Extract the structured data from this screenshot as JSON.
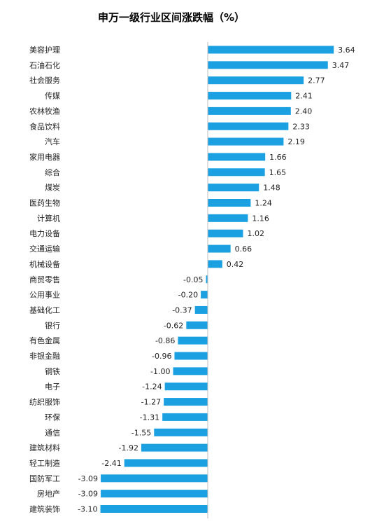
{
  "chart_data": {
    "type": "bar",
    "orientation": "horizontal",
    "title": "申万一级行业区间涨跌幅（%）",
    "categories": [
      "美容护理",
      "石油石化",
      "社会服务",
      "传媒",
      "农林牧渔",
      "食品饮料",
      "汽车",
      "家用电器",
      "综合",
      "煤炭",
      "医药生物",
      "计算机",
      "电力设备",
      "交通运输",
      "机械设备",
      "商贸零售",
      "公用事业",
      "基础化工",
      "银行",
      "有色金属",
      "非银金融",
      "钢铁",
      "电子",
      "纺织服饰",
      "环保",
      "通信",
      "建筑材料",
      "轻工制造",
      "国防军工",
      "房地产",
      "建筑装饰"
    ],
    "values": [
      3.64,
      3.47,
      2.77,
      2.41,
      2.4,
      2.33,
      2.19,
      1.66,
      1.65,
      1.48,
      1.24,
      1.16,
      1.02,
      0.66,
      0.42,
      -0.05,
      -0.2,
      -0.37,
      -0.62,
      -0.86,
      -0.96,
      -1.0,
      -1.24,
      -1.27,
      -1.31,
      -1.55,
      -1.92,
      -2.41,
      -3.09,
      -3.09,
      -3.1
    ],
    "value_labels": [
      "3.64",
      "3.47",
      "2.77",
      "2.41",
      "2.40",
      "2.33",
      "2.19",
      "1.66",
      "1.65",
      "1.48",
      "1.24",
      "1.16",
      "1.02",
      "0.66",
      "0.42",
      "-0.05",
      "-0.20",
      "-0.37",
      "-0.62",
      "-0.86",
      "-0.96",
      "-1.00",
      "-1.24",
      "-1.27",
      "-1.31",
      "-1.55",
      "-1.92",
      "-2.41",
      "-3.09",
      "-3.09",
      "-3.10"
    ],
    "bar_color": "#1BA1E2",
    "axis_line_color": "#BFBFBF",
    "grid": false,
    "legend": "none"
  }
}
